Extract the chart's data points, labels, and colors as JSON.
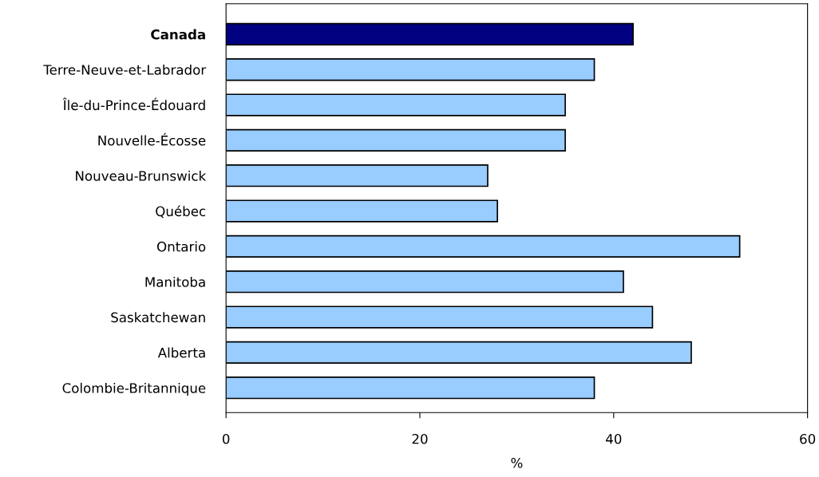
{
  "chart_data": {
    "type": "bar",
    "orientation": "horizontal",
    "xlabel": "%",
    "categories": [
      "Canada",
      "Terre-Neuve-et-Labrador",
      "Île-du-Prince-Édouard",
      "Nouvelle-Écosse",
      "Nouveau-Brunswick",
      "Québec",
      "Ontario",
      "Manitoba",
      "Saskatchewan",
      "Alberta",
      "Colombie-Britannique"
    ],
    "values": [
      42,
      38,
      35,
      35,
      27,
      28,
      53,
      41,
      44,
      48,
      38
    ],
    "colors": [
      "#000080",
      "#99ccff",
      "#99ccff",
      "#99ccff",
      "#99ccff",
      "#99ccff",
      "#99ccff",
      "#99ccff",
      "#99ccff",
      "#99ccff",
      "#99ccff"
    ],
    "xlim": [
      0,
      60
    ],
    "xticks": [
      0,
      20,
      40,
      60
    ],
    "grid": false
  }
}
